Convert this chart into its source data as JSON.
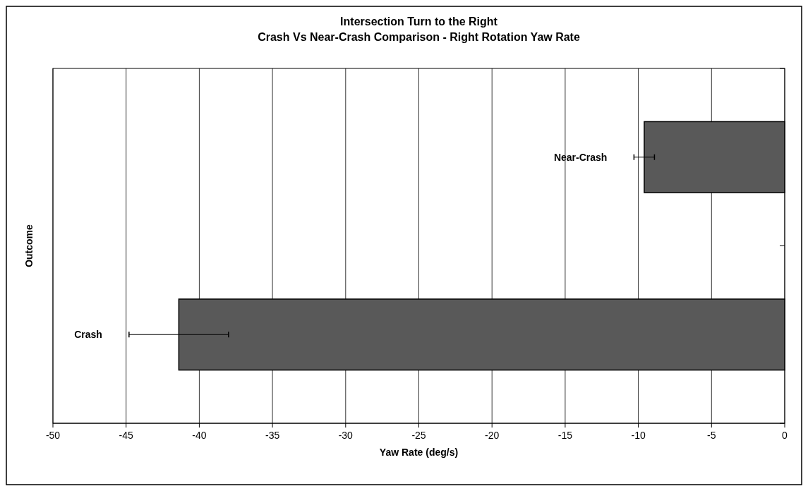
{
  "chart_data": {
    "type": "bar",
    "orientation": "horizontal",
    "title": "Intersection Turn to the Right",
    "subtitle": "Crash Vs Near-Crash Comparison - Right Rotation Yaw Rate",
    "xlabel": "Yaw Rate (deg/s)",
    "ylabel": "Outcome",
    "categories": [
      "Near-Crash",
      "Crash"
    ],
    "values": [
      -9.6,
      -41.4
    ],
    "errors": [
      0.7,
      3.4
    ],
    "color": "#595959",
    "xlim": [
      -50,
      0
    ],
    "xticks": [
      -50,
      -45,
      -40,
      -35,
      -30,
      -25,
      -20,
      -15,
      -10,
      -5,
      0
    ],
    "grid": "x"
  }
}
